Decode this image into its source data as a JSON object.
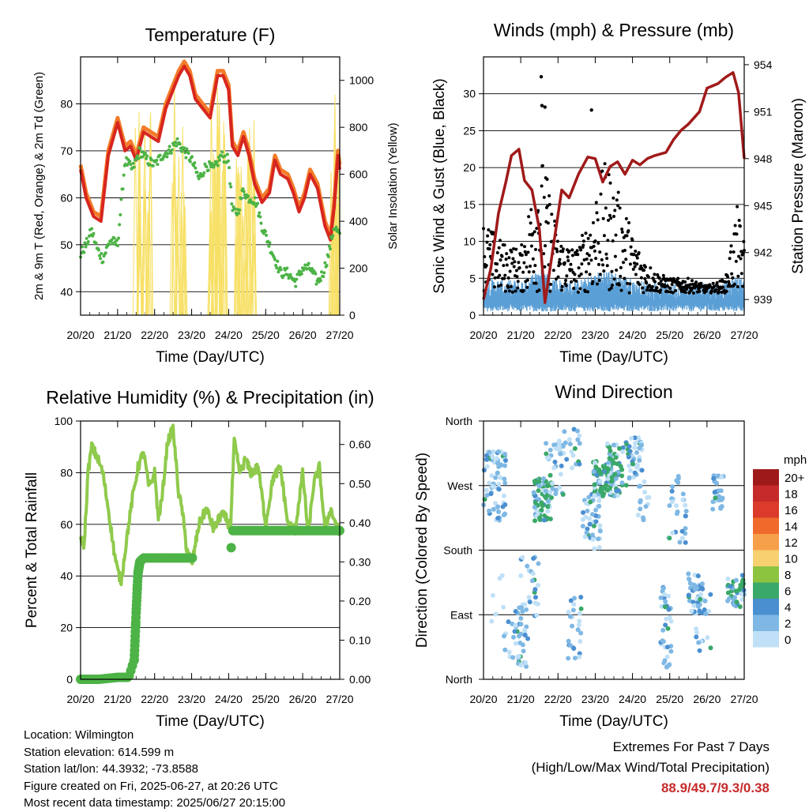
{
  "colors": {
    "temp2m": "#d7261e",
    "temp9m": "#f47c2a",
    "dewpoint": "#4db346",
    "solar": "#f7e066",
    "wind": "#5a9fd6",
    "gust": "#000000",
    "pressure": "#a01a1a",
    "rh": "#8fca4c",
    "precip": "#4db346"
  },
  "x_ticks": [
    "20/20",
    "21/20",
    "22/20",
    "23/20",
    "24/20",
    "25/20",
    "26/20",
    "27/20"
  ],
  "chart_data": [
    {
      "id": "temperature",
      "type": "line",
      "title": "Temperature (F)",
      "xlabel": "Time (Day/UTC)",
      "ylabel": "2m & 9m T (Red, Orange) & 2m Td (Green)",
      "y2label": "Solar Insolation (Yellow)",
      "xlim": [
        0,
        7
      ],
      "ylim": [
        35,
        90
      ],
      "y2lim": [
        0,
        1100
      ],
      "yticks": [
        "40",
        "50",
        "60",
        "70",
        "80"
      ],
      "y2ticks": [
        "0",
        "200",
        "400",
        "600",
        "800",
        "1000"
      ],
      "series": [
        {
          "key": "temp9m",
          "x": [
            0,
            0.15,
            0.35,
            0.55,
            0.75,
            1.0,
            1.2,
            1.35,
            1.5,
            1.7,
            1.9,
            2.1,
            2.3,
            2.5,
            2.65,
            2.8,
            2.95,
            3.1,
            3.3,
            3.5,
            3.7,
            3.85,
            4.0,
            4.1,
            4.25,
            4.4,
            4.55,
            4.7,
            4.9,
            5.1,
            5.25,
            5.4,
            5.6,
            5.75,
            5.9,
            6.05,
            6.2,
            6.4,
            6.6,
            6.75,
            6.85,
            6.95,
            7.0
          ],
          "y": [
            67,
            61,
            57,
            56,
            70,
            77,
            71,
            72,
            69,
            75,
            74,
            73,
            80,
            84,
            87,
            89,
            87,
            82,
            80,
            78,
            87,
            87,
            84,
            72,
            70,
            74,
            70,
            64,
            60,
            62,
            69,
            66,
            65,
            62,
            58,
            61,
            66,
            63,
            55,
            52,
            59,
            70,
            67
          ]
        },
        {
          "key": "temp2m",
          "x": [
            0,
            0.15,
            0.35,
            0.55,
            0.75,
            1.0,
            1.2,
            1.35,
            1.5,
            1.7,
            1.9,
            2.1,
            2.3,
            2.5,
            2.65,
            2.8,
            2.95,
            3.1,
            3.3,
            3.5,
            3.7,
            3.85,
            4.0,
            4.1,
            4.25,
            4.4,
            4.55,
            4.7,
            4.9,
            5.1,
            5.25,
            5.4,
            5.6,
            5.75,
            5.9,
            6.05,
            6.2,
            6.4,
            6.6,
            6.75,
            6.85,
            6.95,
            7.0
          ],
          "y": [
            66,
            60,
            56,
            55,
            69,
            76,
            70,
            71,
            68,
            74,
            73,
            72,
            79,
            83,
            86,
            88,
            86,
            81,
            79,
            77,
            86,
            86,
            83,
            71,
            69,
            73,
            69,
            63,
            59,
            61,
            68,
            65,
            64,
            61,
            57,
            60,
            65,
            62,
            54,
            51,
            58,
            69,
            66
          ]
        },
        {
          "key": "dewpoint",
          "x": [
            0,
            0.15,
            0.3,
            0.45,
            0.6,
            0.8,
            1.0,
            1.2,
            1.4,
            1.6,
            1.8,
            2.0,
            2.2,
            2.4,
            2.6,
            2.8,
            3.0,
            3.2,
            3.4,
            3.6,
            3.8,
            4.0,
            4.1,
            4.25,
            4.4,
            4.5,
            4.6,
            4.75,
            4.9,
            5.1,
            5.25,
            5.4,
            5.6,
            5.8,
            6.0,
            6.2,
            6.4,
            6.55,
            6.7,
            6.85,
            7.0
          ],
          "y": [
            48,
            50,
            53,
            49,
            47,
            51,
            50,
            68,
            66,
            70,
            68,
            67,
            69,
            70,
            72,
            70,
            68,
            64,
            67,
            66,
            69,
            68,
            57,
            57,
            62,
            60,
            60,
            59,
            54,
            50,
            47,
            44,
            44,
            42,
            45,
            45,
            42,
            44,
            48,
            54,
            52
          ]
        }
      ],
      "solar": {
        "peaks": [
          1.55,
          1.8,
          2.55,
          2.75,
          3.55,
          3.7,
          3.8,
          4.3,
          4.5,
          4.65,
          6.85,
          6.95
        ],
        "peak_values": [
          870,
          950,
          1080,
          900,
          980,
          1000,
          1060,
          700,
          800,
          880,
          900,
          1020
        ]
      }
    },
    {
      "id": "winds",
      "type": "scatter",
      "title": "Winds (mph) & Pressure (mb)",
      "xlabel": "Time (Day/UTC)",
      "ylabel": "Sonic Wind & Gust (Blue, Black)",
      "y2label": "Station Pressure (Maroon)",
      "xlim": [
        0,
        7
      ],
      "ylim": [
        0,
        35
      ],
      "y2lim": [
        938.0,
        954.5
      ],
      "yticks": [
        "0",
        "5",
        "10",
        "15",
        "20",
        "25",
        "30"
      ],
      "y2ticks": [
        "939",
        "942",
        "945",
        "948",
        "951",
        "954"
      ],
      "gust_envelope": {
        "x": [
          0,
          0.5,
          1.0,
          1.3,
          1.5,
          1.7,
          2.0,
          2.5,
          2.8,
          3.1,
          3.3,
          3.5,
          3.8,
          4.0,
          4.3,
          4.6,
          5.0,
          5.5,
          6.0,
          6.5,
          6.8,
          7.0
        ],
        "y": [
          12,
          9,
          8,
          16,
          22,
          18,
          10,
          8,
          12,
          18,
          20,
          17,
          14,
          10,
          7,
          5,
          4,
          4,
          3,
          4,
          14,
          9
        ]
      },
      "pressure": {
        "x": [
          0,
          0.2,
          0.4,
          0.6,
          0.75,
          0.95,
          1.1,
          1.3,
          1.5,
          1.65,
          1.85,
          2.1,
          2.3,
          2.55,
          2.8,
          3.0,
          3.2,
          3.4,
          3.6,
          3.8,
          4.0,
          4.2,
          4.4,
          4.6,
          4.9,
          5.1,
          5.3,
          5.5,
          5.8,
          6.0,
          6.3,
          6.5,
          6.7,
          6.85,
          7.0
        ],
        "y": [
          939.0,
          941.0,
          944.5,
          946.5,
          948.2,
          948.6,
          946.6,
          946.0,
          943.5,
          938.8,
          942.0,
          946.0,
          945.5,
          947.0,
          948.1,
          948.0,
          946.5,
          947.5,
          947.8,
          947.0,
          947.9,
          947.6,
          948.0,
          948.2,
          948.4,
          949.2,
          949.8,
          950.2,
          951.0,
          952.5,
          952.8,
          953.2,
          953.5,
          952.2,
          948.0
        ]
      }
    },
    {
      "id": "humidity",
      "type": "line",
      "title": "Relative Humidity (%) & Precipitation (in)",
      "xlabel": "Time (Day/UTC)",
      "ylabel": "Percent & Total Rainfall",
      "xlim": [
        0,
        7
      ],
      "ylim": [
        0,
        100
      ],
      "y2lim": [
        0,
        0.66
      ],
      "yticks": [
        "0",
        "20",
        "40",
        "60",
        "80",
        "100"
      ],
      "y2ticks": [
        "0.00",
        "0.10",
        "0.20",
        "0.30",
        "0.40",
        "0.50",
        "0.60"
      ],
      "rh": {
        "x": [
          0,
          0.1,
          0.2,
          0.3,
          0.45,
          0.6,
          0.75,
          0.9,
          1.0,
          1.1,
          1.25,
          1.4,
          1.55,
          1.7,
          1.85,
          2.0,
          2.1,
          2.2,
          2.35,
          2.5,
          2.65,
          2.75,
          2.85,
          3.0,
          3.2,
          3.4,
          3.6,
          3.8,
          3.95,
          4.05,
          4.15,
          4.3,
          4.45,
          4.6,
          4.8,
          5.0,
          5.2,
          5.4,
          5.6,
          5.8,
          6.0,
          6.15,
          6.3,
          6.45,
          6.6,
          6.75,
          6.9,
          7.0
        ],
        "y": [
          55,
          52,
          80,
          90,
          86,
          80,
          66,
          50,
          42,
          38,
          55,
          70,
          82,
          88,
          74,
          80,
          62,
          70,
          92,
          97,
          72,
          65,
          52,
          44,
          60,
          66,
          58,
          64,
          62,
          58,
          92,
          80,
          85,
          80,
          82,
          60,
          78,
          82,
          60,
          58,
          80,
          56,
          76,
          82,
          58,
          66,
          60,
          56
        ]
      },
      "precip": {
        "x": [
          0,
          0.5,
          1.0,
          1.3,
          1.45,
          1.5,
          1.55,
          1.6,
          1.7,
          2.0,
          2.5,
          3.0,
          3.5,
          4.05,
          4.1,
          4.5,
          5.0,
          5.5,
          6.0,
          6.5,
          7.0
        ],
        "y": [
          0,
          0,
          0.005,
          0.005,
          0.05,
          0.17,
          0.27,
          0.3,
          0.31,
          0.31,
          0.31,
          0.31,
          0.31,
          0.31,
          0.38,
          0.38,
          0.38,
          0.38,
          0.38,
          0.38,
          0.38
        ]
      }
    },
    {
      "id": "direction",
      "type": "scatter",
      "title": "Wind Direction",
      "xlabel": "Time (Day/UTC)",
      "ylabel": "Direction (Colored By Speed)",
      "xlim": [
        0,
        7
      ],
      "ylim": [
        0,
        360
      ],
      "yticks": [
        "North",
        "East",
        "South",
        "West",
        "North"
      ],
      "clusters": [
        {
          "x": 0.3,
          "w": 0.6,
          "d": 270,
          "s": 50,
          "n": 70
        },
        {
          "x": 0.6,
          "w": 0.8,
          "d": 90,
          "s": 60,
          "n": 15
        },
        {
          "x": 1.0,
          "w": 0.4,
          "d": 60,
          "s": 45,
          "n": 35
        },
        {
          "x": 1.25,
          "w": 0.5,
          "d": 130,
          "s": 45,
          "n": 25
        },
        {
          "x": 1.6,
          "w": 0.5,
          "d": 250,
          "s": 30,
          "n": 80
        },
        {
          "x": 1.9,
          "w": 0.5,
          "d": 290,
          "s": 40,
          "n": 30
        },
        {
          "x": 2.3,
          "w": 0.6,
          "d": 320,
          "s": 30,
          "n": 25
        },
        {
          "x": 2.45,
          "w": 0.4,
          "d": 70,
          "s": 45,
          "n": 25
        },
        {
          "x": 2.9,
          "w": 0.5,
          "d": 220,
          "s": 40,
          "n": 45
        },
        {
          "x": 3.3,
          "w": 0.7,
          "d": 280,
          "s": 25,
          "n": 90
        },
        {
          "x": 3.6,
          "w": 0.6,
          "d": 300,
          "s": 30,
          "n": 40
        },
        {
          "x": 4.1,
          "w": 0.4,
          "d": 310,
          "s": 30,
          "n": 35
        },
        {
          "x": 4.3,
          "w": 0.3,
          "d": 250,
          "s": 30,
          "n": 15
        },
        {
          "x": 4.9,
          "w": 0.3,
          "d": 70,
          "s": 60,
          "n": 35
        },
        {
          "x": 5.2,
          "w": 0.5,
          "d": 240,
          "s": 50,
          "n": 30
        },
        {
          "x": 5.7,
          "w": 0.4,
          "d": 120,
          "s": 30,
          "n": 40
        },
        {
          "x": 5.9,
          "w": 0.4,
          "d": 80,
          "s": 50,
          "n": 20
        },
        {
          "x": 6.3,
          "w": 0.3,
          "d": 260,
          "s": 25,
          "n": 30
        },
        {
          "x": 6.75,
          "w": 0.4,
          "d": 120,
          "s": 20,
          "n": 30
        },
        {
          "x": 6.95,
          "w": 0.1,
          "d": 130,
          "s": 15,
          "n": 10
        }
      ],
      "legend": {
        "title": "mph",
        "labels": [
          "20+",
          "18",
          "16",
          "14",
          "12",
          "10",
          "8",
          "6",
          "4",
          "2",
          "0"
        ],
        "colors": [
          "#9e1a1a",
          "#c62a2a",
          "#dc3a2a",
          "#f06a2c",
          "#f7a04a",
          "#f7d070",
          "#8cc440",
          "#3aa868",
          "#4a8fd0",
          "#7fb8e4",
          "#bfe0f6"
        ]
      }
    }
  ],
  "info": {
    "location": "Location: Wilmington",
    "elevation": "Station elevation: 614.599 m",
    "latlon": "Station lat/lon: 44.3932; -73.8588",
    "created": "Figure created on Fri, 2025-06-27, at 20:26 UTC",
    "recent": "Most recent data timestamp: 2025/06/27 20:15:00"
  },
  "extremes": {
    "title": "Extremes For Past 7 Days",
    "subtitle": "(High/Low/Max Wind/Total Precipitation)",
    "values": "88.9/49.7/9.3/0.38"
  }
}
